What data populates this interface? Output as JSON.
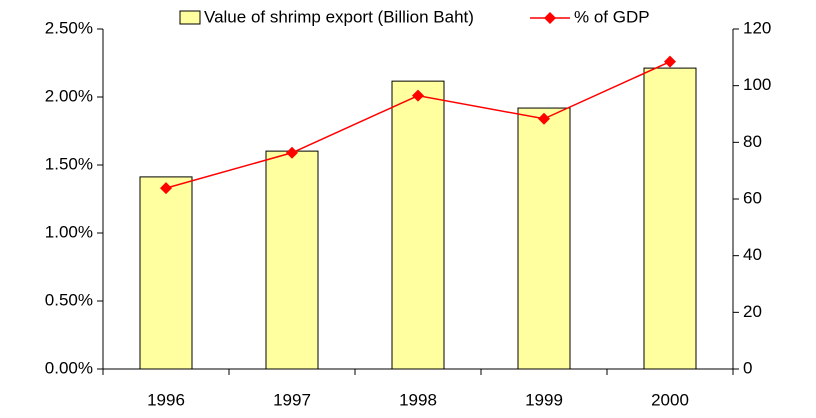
{
  "chart_data": {
    "type": "bar",
    "categories": [
      "1996",
      "1997",
      "1998",
      "1999",
      "2000"
    ],
    "series": [
      {
        "name": "Value of shrimp export (Billion Baht)",
        "type": "bar",
        "axis": "y2",
        "color": "#ffffa0",
        "values": [
          67.8,
          76.9,
          101.6,
          92.1,
          106.2
        ]
      },
      {
        "name": "% of GDP",
        "type": "line",
        "axis": "y",
        "color": "#ff0000",
        "values": [
          1.33,
          1.59,
          2.01,
          1.84,
          2.26
        ]
      }
    ],
    "ylim": [
      0,
      2.5
    ],
    "yticks": [
      {
        "value": 0,
        "label": "0.00%"
      },
      {
        "value": 0.5,
        "label": "0.50%"
      },
      {
        "value": 1,
        "label": "1.00%"
      },
      {
        "value": 1.5,
        "label": "1.50%"
      },
      {
        "value": 2,
        "label": "2.00%"
      },
      {
        "value": 2.5,
        "label": "2.50%"
      }
    ],
    "y2lim": [
      0,
      120
    ],
    "y2ticks": [
      0,
      20,
      40,
      60,
      80,
      100,
      120
    ],
    "grid": false
  }
}
